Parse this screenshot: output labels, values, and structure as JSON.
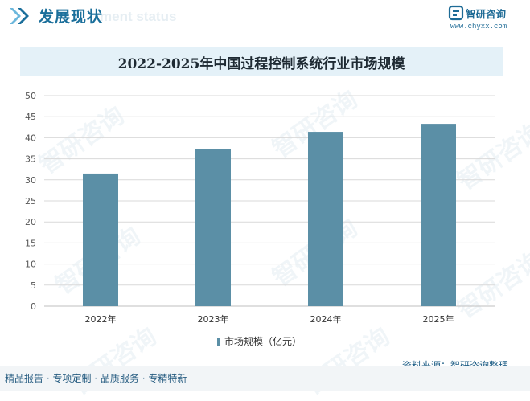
{
  "header": {
    "title": "发展现状",
    "subtitle": "ment status"
  },
  "brand": {
    "name": "智研咨询",
    "url": "www.chyxx.com",
    "watermark_text": "智研咨询"
  },
  "chart_data": {
    "type": "bar",
    "title": "2022-2025年中国过程控制系统行业市场规模",
    "categories": [
      "2022年",
      "2023年",
      "2024年",
      "2025年"
    ],
    "series": [
      {
        "name": "市场规模（亿元）",
        "values": [
          31.5,
          37.4,
          41.4,
          43.3
        ]
      }
    ],
    "ylim": [
      0,
      50
    ],
    "yticks": [
      0,
      5,
      10,
      15,
      20,
      25,
      30,
      35,
      40,
      45,
      50
    ],
    "grid": true,
    "legend": "bottom",
    "bar_color": "#5b8fa6"
  },
  "source": "资料来源：智研咨询整理",
  "footer": "精品报告 · 专项定制 · 品质服务 · 专精特新",
  "colors": {
    "accent": "#1b6f9b",
    "title_band": "#e4f1f8",
    "grid": "#d9d9d9"
  }
}
